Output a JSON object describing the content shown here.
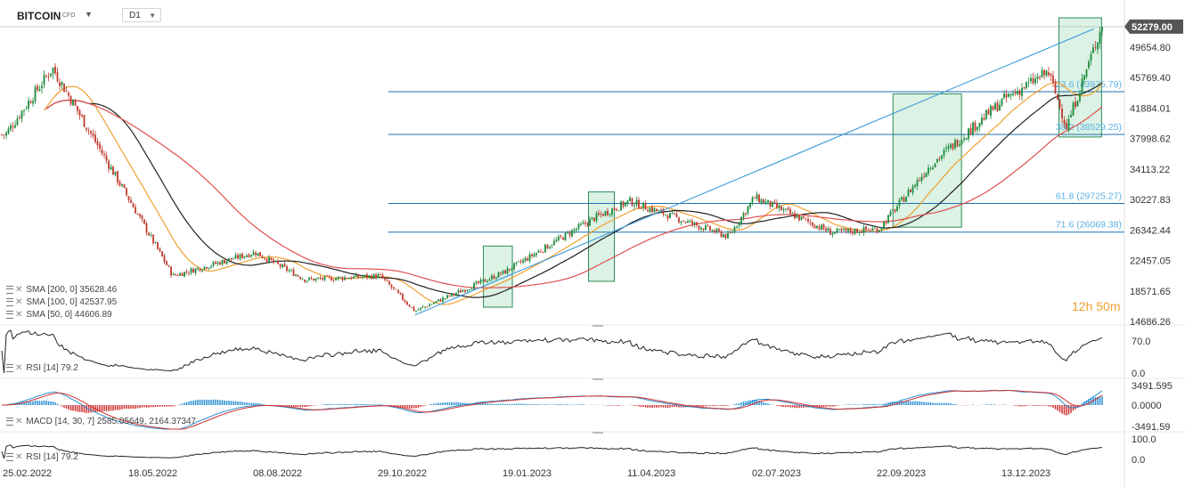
{
  "header": {
    "symbol": "BITCOIN",
    "symbol_type": "CFD",
    "timeframe": "D1"
  },
  "countdown": {
    "hours": "12",
    "h_unit": "h",
    "minutes": "50",
    "m_unit": "m"
  },
  "price_axis": {
    "current_price_label": "52279.00",
    "ticks": [
      "49654.80",
      "45769.40",
      "41884.01",
      "37998.62",
      "34113.22",
      "30227.83",
      "26342.44",
      "22457.05",
      "18571.65",
      "14686.26"
    ],
    "tick_values": [
      49654.8,
      45769.4,
      41884.01,
      37998.62,
      34113.22,
      30227.83,
      26342.44,
      22457.05,
      18571.65,
      14686.26
    ]
  },
  "date_axis": [
    "25.02.2022",
    "18.05.2022",
    "08.08.2022",
    "29.10.2022",
    "19.01.2023",
    "11.04.2023",
    "02.07.2023",
    "22.09.2023",
    "13.12.2023"
  ],
  "legend": {
    "sma200": "SMA [200, 0] 35628.46",
    "sma100": "SMA [100, 0] 42537.95",
    "sma50": "SMA [50, 0] 44606.89",
    "rsi1": "RSI [14] 79.2",
    "macd": "MACD [14, 30, 7] 2585.05649, 2164.37347",
    "rsi2": "RSI [14] 79.2"
  },
  "fib_levels": [
    {
      "label": "23.6 (43975.79)",
      "value": 43975.79
    },
    {
      "label": "38.2 (38529.25)",
      "value": 38529.25
    },
    {
      "label": "61.8 (29725.27)",
      "value": 29725.27
    },
    {
      "label": "71.6 (26069.38)",
      "value": 26069.38
    }
  ],
  "rsi_axis": [
    "70.0",
    "0.0"
  ],
  "macd_axis": [
    "3491.595",
    "0.0000",
    "-3491.59"
  ],
  "rsi2_axis": [
    "100.0",
    "0.0"
  ],
  "colors": {
    "candle_up": "#1b8a3a",
    "candle_down": "#c0392b",
    "sma200": "#e05050",
    "sma100": "#222222",
    "sma50": "#f0a030",
    "fib_line": "#1f6fb0",
    "fib_text": "#5ab0e0",
    "trendline": "#3a9ad9",
    "highlight_fill": "#7fd0a0",
    "highlight_stroke": "#2e8b57",
    "price_tag_bg": "#555555",
    "macd_up": "#2a8fd0",
    "macd_down": "#d03030"
  },
  "chart_data": {
    "type": "candlestick",
    "title": "BITCOIN",
    "timeframe": "D1",
    "x_range": [
      "25.02.2022",
      "15.02.2024"
    ],
    "y_range": [
      14686.26,
      52279.0
    ],
    "last_price": 52279.0,
    "approx_price_path": [
      {
        "date": "25.02.2022",
        "price": 38500
      },
      {
        "date": "28.03.2022",
        "price": 47000
      },
      {
        "date": "18.05.2022",
        "price": 30000
      },
      {
        "date": "15.06.2022",
        "price": 20500
      },
      {
        "date": "08.08.2022",
        "price": 23500
      },
      {
        "date": "10.09.2022",
        "price": 20000
      },
      {
        "date": "29.10.2022",
        "price": 20500
      },
      {
        "date": "21.11.2022",
        "price": 16000
      },
      {
        "date": "19.01.2023",
        "price": 21000
      },
      {
        "date": "20.03.2023",
        "price": 28000
      },
      {
        "date": "11.04.2023",
        "price": 30000
      },
      {
        "date": "15.06.2023",
        "price": 25500
      },
      {
        "date": "02.07.2023",
        "price": 30500
      },
      {
        "date": "22.08.2023",
        "price": 26000
      },
      {
        "date": "22.09.2023",
        "price": 26500
      },
      {
        "date": "25.10.2023",
        "price": 34500
      },
      {
        "date": "13.12.2023",
        "price": 43000
      },
      {
        "date": "11.01.2024",
        "price": 46500
      },
      {
        "date": "23.01.2024",
        "price": 39500
      },
      {
        "date": "15.02.2024",
        "price": 52279
      }
    ],
    "indicators": {
      "sma200": 35628.46,
      "sma100": 42537.95,
      "sma50": 44606.89,
      "rsi14": 79.2,
      "macd": [
        2585.05649,
        2164.37347
      ]
    }
  }
}
